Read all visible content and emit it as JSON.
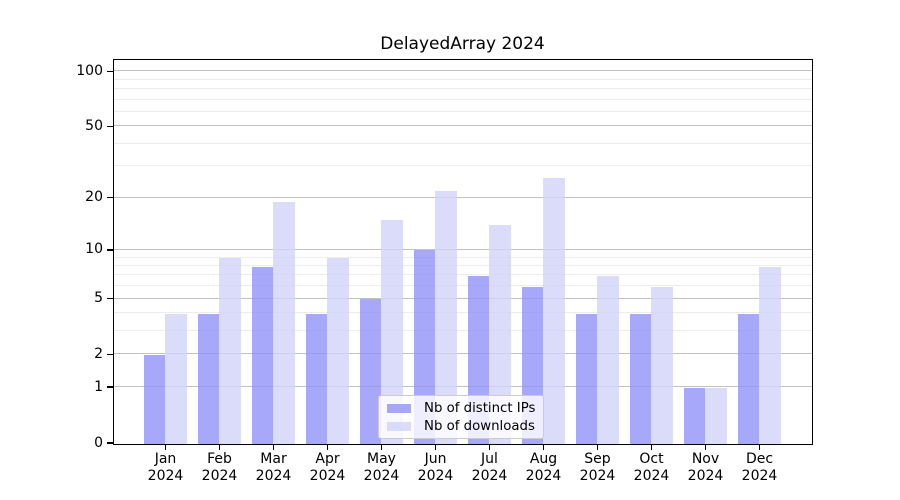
{
  "title": "DelayedArray 2024",
  "chart_data": {
    "type": "bar",
    "title": "DelayedArray 2024",
    "categories": [
      "Jan",
      "Feb",
      "Mar",
      "Apr",
      "May",
      "Jun",
      "Jul",
      "Aug",
      "Sep",
      "Oct",
      "Nov",
      "Dec"
    ],
    "x_sub_label": "2024",
    "series": [
      {
        "name": "Nb of distinct IPs",
        "values": [
          2,
          4,
          8,
          4,
          5,
          10,
          7,
          6,
          4,
          4,
          1,
          4
        ],
        "color": "rgba(146,146,249,0.8)"
      },
      {
        "name": "Nb of downloads",
        "values": [
          4,
          9,
          19,
          9,
          15,
          22,
          14,
          26,
          7,
          6,
          1,
          8
        ],
        "color": "rgba(210,210,249,0.8)"
      }
    ],
    "xlabel": "",
    "ylabel": "",
    "y_axis": {
      "scale": "log10(1+x)",
      "tick_values": [
        0,
        1,
        2,
        5,
        10,
        20,
        50,
        100
      ],
      "tick_labels": [
        "0",
        "1",
        "2",
        "5",
        "10",
        "20",
        "50",
        "100"
      ],
      "minor_gridline_values": [
        3,
        4,
        6,
        7,
        8,
        9,
        30,
        40,
        60,
        70,
        80,
        90
      ],
      "top_value_transformed": 2.0647
    },
    "grid": "horizontal",
    "legend_position": "bottom-center"
  },
  "legend": {
    "entries": [
      {
        "label": "Nb of distinct IPs"
      },
      {
        "label": "Nb of downloads"
      }
    ]
  },
  "colors": {
    "ips_bar": "rgba(146,146,249,0.8)",
    "downloads_bar": "rgba(210,210,249,0.8)",
    "major_gridline": "#c2c2c2",
    "minor_gridline": "#ececec",
    "axis": "#000000",
    "background": "#ffffff"
  }
}
